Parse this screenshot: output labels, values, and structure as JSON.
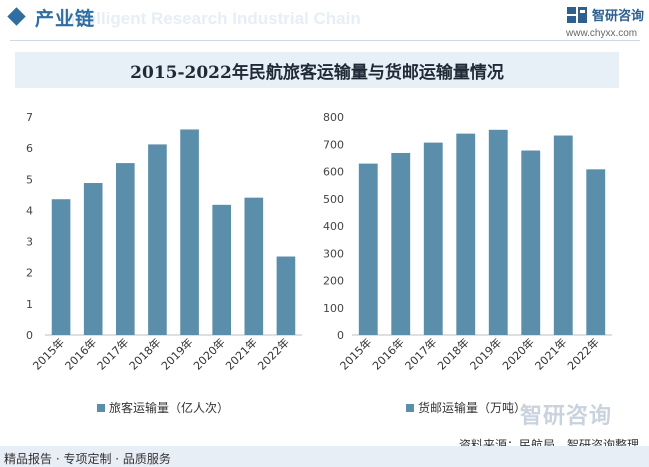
{
  "header": {
    "section_title": "产业链",
    "watermark_en": "Intelligent Research Industrial Chain",
    "brand_name": "智研咨询",
    "brand_url": "www.chyxx.com"
  },
  "title": "2015-2022年民航旅客运输量与货邮运输量情况",
  "watermark_bottom": "智研咨询",
  "footer": {
    "left": "精品报告 · 专项定制 · 品质服务",
    "right": "资料来源：民航局，智研咨询整理"
  },
  "colors": {
    "bar": "#5b8eab",
    "accent": "#2e6ea3"
  },
  "chart_data": [
    {
      "type": "bar",
      "categories": [
        "2015年",
        "2016年",
        "2017年",
        "2018年",
        "2019年",
        "2020年",
        "2021年",
        "2022年"
      ],
      "values": [
        4.36,
        4.88,
        5.52,
        6.12,
        6.6,
        4.18,
        4.41,
        2.52
      ],
      "legend": "旅客运输量（亿人次）",
      "yticks": [
        "0",
        "1",
        "2",
        "3",
        "4",
        "5",
        "6",
        "7"
      ],
      "ylim": [
        0,
        7
      ]
    },
    {
      "type": "bar",
      "categories": [
        "2015年",
        "2016年",
        "2017年",
        "2018年",
        "2019年",
        "2020年",
        "2021年",
        "2022年"
      ],
      "values": [
        629,
        668,
        706,
        739,
        753,
        677,
        732,
        608
      ],
      "legend": "货邮运输量（万吨）",
      "yticks": [
        "0",
        "100",
        "200",
        "300",
        "400",
        "500",
        "600",
        "700",
        "800"
      ],
      "ylim": [
        0,
        800
      ]
    }
  ]
}
